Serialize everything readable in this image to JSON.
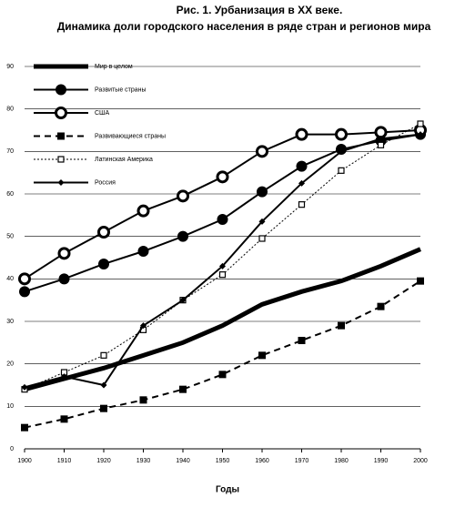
{
  "chart_data": {
    "type": "line",
    "title": "Рис. 1. Урбанизация в XX веке.",
    "subtitle": "Динамика доли городского населения в ряде стран и регионов мира",
    "x_label": "Годы",
    "x": [
      1900,
      1910,
      1920,
      1930,
      1940,
      1950,
      1960,
      1970,
      1980,
      1990,
      2000
    ],
    "xlim": [
      1900,
      2000
    ],
    "xticks": [
      1900,
      1910,
      1920,
      1930,
      1940,
      1950,
      1960,
      1970,
      1980,
      1990,
      2000
    ],
    "ylim": [
      0,
      90
    ],
    "yticks": [
      0,
      10,
      20,
      30,
      40,
      50,
      60,
      70,
      80,
      90
    ],
    "grid": true,
    "legend": "upper left",
    "series": [
      {
        "name": "Мир в целом",
        "color": "#000000",
        "width": 5,
        "dash": "none",
        "marker": "none",
        "values": [
          14,
          16.5,
          19,
          22,
          25,
          29,
          34,
          37,
          39.5,
          43,
          47
        ]
      },
      {
        "name": "Развитые страны",
        "color": "#000000",
        "width": 2,
        "dash": "none",
        "marker": "circle",
        "values": [
          37,
          40,
          43.5,
          46.5,
          50,
          54,
          60.5,
          66.5,
          70.5,
          72.5,
          74
        ]
      },
      {
        "name": "США",
        "color": "#000000",
        "width": 2,
        "dash": "none",
        "marker": "open-circle",
        "values": [
          40,
          46,
          51,
          56,
          59.5,
          64,
          70,
          74,
          74,
          74.5,
          75
        ]
      },
      {
        "name": "Развивающиеся страны",
        "color": "#000000",
        "width": 2,
        "dash": "dashed",
        "marker": "square",
        "values": [
          5,
          7,
          9.5,
          11.5,
          14,
          17.5,
          22,
          25.5,
          29,
          33.5,
          39.5
        ]
      },
      {
        "name": "Латинская Америка",
        "color": "#000000",
        "width": 1,
        "dash": "dotted",
        "marker": "open-square",
        "values": [
          14,
          18,
          22,
          28,
          35,
          41,
          49.5,
          57.5,
          65.5,
          71.5,
          76.5
        ]
      },
      {
        "name": "Россия",
        "color": "#000000",
        "width": 2,
        "dash": "none",
        "marker": "diamond",
        "values": [
          14.5,
          17,
          15,
          29,
          35,
          43,
          53.5,
          62.5,
          70,
          73,
          74
        ]
      }
    ]
  }
}
